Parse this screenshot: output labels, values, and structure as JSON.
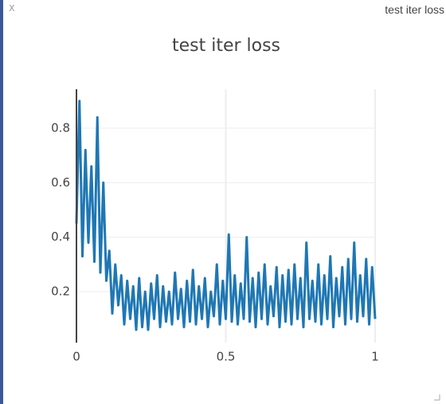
{
  "window": {
    "close": "X",
    "title": "test iter loss"
  },
  "chart_data": {
    "type": "line",
    "title": "test iter loss",
    "x": [
      0,
      0.01,
      0.02,
      0.03,
      0.04,
      0.05,
      0.06,
      0.07,
      0.08,
      0.09,
      0.1,
      0.11,
      0.12,
      0.13,
      0.14,
      0.15,
      0.16,
      0.17,
      0.18,
      0.19,
      0.2,
      0.21,
      0.22,
      0.23,
      0.24,
      0.25,
      0.26,
      0.27,
      0.28,
      0.29,
      0.3,
      0.31,
      0.32,
      0.33,
      0.34,
      0.35,
      0.36,
      0.37,
      0.38,
      0.39,
      0.4,
      0.41,
      0.42,
      0.43,
      0.44,
      0.45,
      0.46,
      0.47,
      0.48,
      0.49,
      0.5,
      0.51,
      0.52,
      0.53,
      0.54,
      0.55,
      0.56,
      0.57,
      0.58,
      0.59,
      0.6,
      0.61,
      0.62,
      0.63,
      0.64,
      0.65,
      0.66,
      0.67,
      0.68,
      0.69,
      0.7,
      0.71,
      0.72,
      0.73,
      0.74,
      0.75,
      0.76,
      0.77,
      0.78,
      0.79,
      0.8,
      0.81,
      0.82,
      0.83,
      0.84,
      0.85,
      0.86,
      0.87,
      0.88,
      0.89,
      0.9,
      0.91,
      0.92,
      0.93,
      0.94,
      0.95,
      0.96,
      0.97,
      0.98,
      0.99,
      1
    ],
    "series": [
      {
        "name": "test iter loss",
        "color": "#1f77b4",
        "values": [
          0.45,
          0.9,
          0.33,
          0.72,
          0.38,
          0.66,
          0.31,
          0.84,
          0.27,
          0.6,
          0.24,
          0.35,
          0.12,
          0.3,
          0.15,
          0.26,
          0.08,
          0.24,
          0.1,
          0.22,
          0.06,
          0.25,
          0.07,
          0.2,
          0.06,
          0.23,
          0.1,
          0.26,
          0.07,
          0.22,
          0.09,
          0.2,
          0.08,
          0.27,
          0.1,
          0.21,
          0.07,
          0.24,
          0.09,
          0.28,
          0.08,
          0.22,
          0.1,
          0.25,
          0.07,
          0.2,
          0.11,
          0.3,
          0.08,
          0.24,
          0.1,
          0.41,
          0.09,
          0.26,
          0.08,
          0.23,
          0.1,
          0.4,
          0.09,
          0.25,
          0.07,
          0.27,
          0.1,
          0.3,
          0.08,
          0.22,
          0.11,
          0.29,
          0.07,
          0.26,
          0.09,
          0.28,
          0.08,
          0.3,
          0.1,
          0.25,
          0.07,
          0.38,
          0.1,
          0.24,
          0.09,
          0.3,
          0.08,
          0.26,
          0.1,
          0.33,
          0.07,
          0.25,
          0.11,
          0.29,
          0.08,
          0.32,
          0.1,
          0.38,
          0.09,
          0.26,
          0.11,
          0.32,
          0.08,
          0.29,
          0.1
        ]
      }
    ],
    "xlim": [
      0,
      1
    ],
    "xticks": [
      0,
      0.5,
      1
    ],
    "ylim": [
      0.013,
      0.943
    ],
    "yticks": [
      0.2,
      0.4,
      0.6,
      0.8
    ],
    "grid": true
  }
}
